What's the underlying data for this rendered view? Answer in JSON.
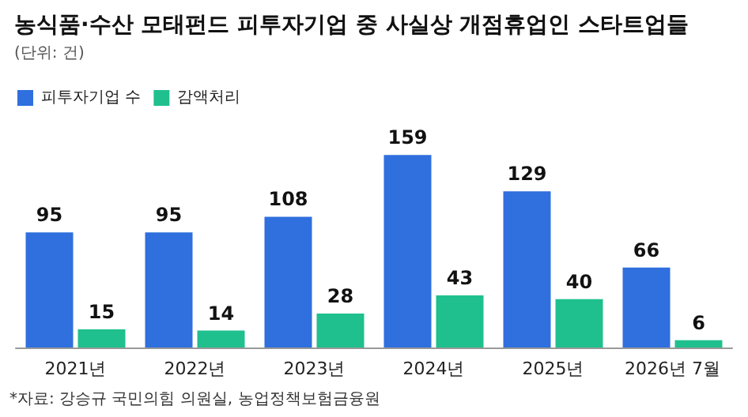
{
  "chart_data": {
    "type": "bar",
    "title": "농식품·수산 모태펀드 피투자기업 중 사실상 개점휴업인 스타트업들",
    "subtitle": "(단위: 건)",
    "categories": [
      "2021년",
      "2022년",
      "2023년",
      "2024년",
      "2025년",
      "2026년 7월"
    ],
    "series": [
      {
        "name": "피투자기업 수",
        "color": "#2f6fde",
        "values": [
          95,
          95,
          108,
          159,
          129,
          66
        ]
      },
      {
        "name": "감액처리",
        "color": "#1fc08e",
        "values": [
          15,
          14,
          28,
          43,
          40,
          6
        ]
      }
    ],
    "data_labels": true,
    "legend": "top left",
    "annotations": [
      "*자료: 강승규 국민의힘 의원실, 농업정책보험금융원"
    ]
  }
}
